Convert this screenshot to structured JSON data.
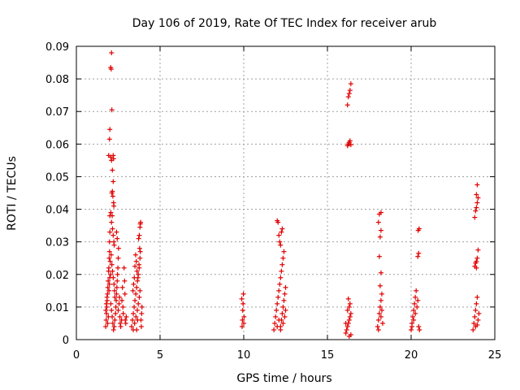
{
  "chart_data": {
    "type": "scatter",
    "title": "Day 106 of 2019, Rate Of TEC Index for receiver arub",
    "xlabel": "GPS time / hours",
    "ylabel": "ROTI / TECUs",
    "xlim": [
      0,
      25
    ],
    "ylim": [
      0,
      0.09
    ],
    "xticks": [
      0,
      5,
      10,
      15,
      20,
      25
    ],
    "xtick_labels": [
      "0",
      "5",
      "10",
      "15",
      "20",
      "25"
    ],
    "yticks": [
      0,
      0.01,
      0.02,
      0.03,
      0.04,
      0.05,
      0.06,
      0.07,
      0.08,
      0.09
    ],
    "ytick_labels": [
      "0",
      "0.01",
      "0.02",
      "0.03",
      "0.04",
      "0.05",
      "0.06",
      "0.07",
      "0.08",
      "0.09"
    ],
    "grid": true,
    "marker": "plus",
    "marker_color": "#e00000",
    "series": [
      {
        "points": [
          [
            1.75,
            0.004
          ],
          [
            1.78,
            0.006
          ],
          [
            1.8,
            0.008
          ],
          [
            1.82,
            0.01
          ],
          [
            1.84,
            0.012
          ],
          [
            1.86,
            0.014
          ],
          [
            1.88,
            0.016
          ],
          [
            1.9,
            0.018
          ],
          [
            1.92,
            0.021
          ],
          [
            1.76,
            0.009
          ],
          [
            1.79,
            0.011
          ],
          [
            1.83,
            0.013
          ],
          [
            1.87,
            0.005
          ],
          [
            1.91,
            0.007
          ],
          [
            1.95,
            0.015
          ],
          [
            1.97,
            0.017
          ],
          [
            1.99,
            0.019
          ],
          [
            1.94,
            0.022
          ],
          [
            1.96,
            0.025
          ],
          [
            1.98,
            0.03
          ],
          [
            2.0,
            0.038
          ],
          [
            2.0,
            0.033
          ],
          [
            1.98,
            0.027
          ],
          [
            2.02,
            0.024
          ],
          [
            2.04,
            0.02
          ],
          [
            1.93,
            0.0565
          ],
          [
            1.98,
            0.0615
          ],
          [
            2.0,
            0.0645
          ],
          [
            2.05,
            0.0835
          ],
          [
            2.08,
            0.083
          ],
          [
            2.1,
            0.088
          ],
          [
            2.12,
            0.0705
          ],
          [
            2.05,
            0.056
          ],
          [
            2.1,
            0.055
          ],
          [
            2.15,
            0.052
          ],
          [
            2.2,
            0.0565
          ],
          [
            2.22,
            0.0555
          ],
          [
            2.12,
            0.045
          ],
          [
            2.15,
            0.0455
          ],
          [
            2.18,
            0.044
          ],
          [
            2.2,
            0.0485
          ],
          [
            2.22,
            0.042
          ],
          [
            2.24,
            0.041
          ],
          [
            2.06,
            0.039
          ],
          [
            2.1,
            0.036
          ],
          [
            2.14,
            0.038
          ],
          [
            2.16,
            0.034
          ],
          [
            2.2,
            0.032
          ],
          [
            2.24,
            0.03
          ],
          [
            2.26,
            0.029
          ],
          [
            2.08,
            0.026
          ],
          [
            2.12,
            0.023
          ],
          [
            2.16,
            0.021
          ],
          [
            2.2,
            0.019
          ],
          [
            2.25,
            0.017
          ],
          [
            2.28,
            0.015
          ],
          [
            2.3,
            0.013
          ],
          [
            2.06,
            0.011
          ],
          [
            2.1,
            0.009
          ],
          [
            2.14,
            0.007
          ],
          [
            2.18,
            0.005
          ],
          [
            2.22,
            0.003
          ],
          [
            2.26,
            0.004
          ],
          [
            2.3,
            0.006
          ],
          [
            2.34,
            0.008
          ],
          [
            2.36,
            0.01
          ],
          [
            2.38,
            0.012
          ],
          [
            2.4,
            0.014
          ],
          [
            2.42,
            0.016
          ],
          [
            2.44,
            0.018
          ],
          [
            2.46,
            0.02
          ],
          [
            2.48,
            0.022
          ],
          [
            2.5,
            0.025
          ],
          [
            2.52,
            0.028
          ],
          [
            2.44,
            0.031
          ],
          [
            2.4,
            0.033
          ],
          [
            2.5,
            0.009
          ],
          [
            2.55,
            0.011
          ],
          [
            2.58,
            0.013
          ],
          [
            2.6,
            0.007
          ],
          [
            2.62,
            0.005
          ],
          [
            2.65,
            0.004
          ],
          [
            2.7,
            0.006
          ],
          [
            2.72,
            0.012
          ],
          [
            2.75,
            0.016
          ],
          [
            2.78,
            0.01
          ],
          [
            2.8,
            0.008
          ],
          [
            2.85,
            0.022
          ],
          [
            2.88,
            0.018
          ],
          [
            2.9,
            0.014
          ],
          [
            2.92,
            0.006
          ],
          [
            2.95,
            0.005
          ],
          [
            2.98,
            0.007
          ]
        ]
      },
      {
        "points": [
          [
            3.3,
            0.004
          ],
          [
            3.35,
            0.006
          ],
          [
            3.4,
            0.008
          ],
          [
            3.45,
            0.01
          ],
          [
            3.5,
            0.012
          ],
          [
            3.55,
            0.014
          ],
          [
            3.6,
            0.016
          ],
          [
            3.65,
            0.018
          ],
          [
            3.7,
            0.02
          ],
          [
            3.75,
            0.022
          ],
          [
            3.8,
            0.025
          ],
          [
            3.82,
            0.027
          ],
          [
            3.78,
            0.028
          ],
          [
            3.74,
            0.023
          ],
          [
            3.68,
            0.019
          ],
          [
            3.62,
            0.021
          ],
          [
            3.58,
            0.024
          ],
          [
            3.54,
            0.026
          ],
          [
            3.5,
            0.0225
          ],
          [
            3.46,
            0.019
          ],
          [
            3.42,
            0.017
          ],
          [
            3.38,
            0.015
          ],
          [
            3.72,
            0.031
          ],
          [
            3.76,
            0.032
          ],
          [
            3.8,
            0.0345
          ],
          [
            3.82,
            0.0355
          ],
          [
            3.84,
            0.036
          ],
          [
            3.4,
            0.003
          ],
          [
            3.48,
            0.005
          ],
          [
            3.56,
            0.007
          ],
          [
            3.64,
            0.009
          ],
          [
            3.7,
            0.011
          ],
          [
            3.76,
            0.013
          ],
          [
            3.8,
            0.015
          ],
          [
            3.86,
            0.006
          ],
          [
            3.88,
            0.004
          ],
          [
            3.9,
            0.008
          ],
          [
            3.92,
            0.01
          ],
          [
            3.6,
            0.003
          ],
          [
            3.66,
            0.006
          ]
        ]
      },
      {
        "points": [
          [
            9.9,
            0.004
          ],
          [
            9.92,
            0.006
          ],
          [
            9.94,
            0.009
          ],
          [
            9.96,
            0.011
          ],
          [
            9.98,
            0.014
          ],
          [
            10.0,
            0.005
          ],
          [
            10.02,
            0.007
          ],
          [
            9.88,
            0.0125
          ]
        ]
      },
      {
        "points": [
          [
            11.8,
            0.003
          ],
          [
            11.85,
            0.005
          ],
          [
            11.9,
            0.007
          ],
          [
            11.95,
            0.009
          ],
          [
            12.0,
            0.011
          ],
          [
            12.05,
            0.013
          ],
          [
            12.1,
            0.015
          ],
          [
            12.15,
            0.017
          ],
          [
            12.2,
            0.019
          ],
          [
            12.25,
            0.021
          ],
          [
            12.3,
            0.023
          ],
          [
            12.35,
            0.025
          ],
          [
            12.4,
            0.027
          ],
          [
            12.0,
            0.0365
          ],
          [
            12.05,
            0.036
          ],
          [
            12.1,
            0.032
          ],
          [
            12.15,
            0.03
          ],
          [
            12.2,
            0.029
          ],
          [
            12.25,
            0.033
          ],
          [
            12.3,
            0.034
          ],
          [
            12.2,
            0.004
          ],
          [
            12.25,
            0.006
          ],
          [
            12.3,
            0.008
          ],
          [
            12.35,
            0.01
          ],
          [
            12.4,
            0.012
          ],
          [
            12.45,
            0.014
          ],
          [
            12.5,
            0.016
          ],
          [
            12.0,
            0.004
          ],
          [
            12.1,
            0.006
          ],
          [
            12.2,
            0.003
          ],
          [
            12.35,
            0.005
          ],
          [
            12.45,
            0.007
          ],
          [
            12.5,
            0.009
          ]
        ]
      },
      {
        "points": [
          [
            16.1,
            0.002
          ],
          [
            16.15,
            0.003
          ],
          [
            16.2,
            0.004
          ],
          [
            16.25,
            0.005
          ],
          [
            16.3,
            0.006
          ],
          [
            16.35,
            0.007
          ],
          [
            16.4,
            0.008
          ],
          [
            16.2,
            0.009
          ],
          [
            16.3,
            0.01
          ],
          [
            16.35,
            0.011
          ],
          [
            16.25,
            0.0125
          ],
          [
            16.3,
            0.001
          ],
          [
            16.4,
            0.0015
          ],
          [
            16.1,
            0.005
          ],
          [
            16.2,
            0.0595
          ],
          [
            16.25,
            0.06
          ],
          [
            16.3,
            0.0605
          ],
          [
            16.35,
            0.061
          ],
          [
            16.4,
            0.0598
          ],
          [
            16.2,
            0.072
          ],
          [
            16.25,
            0.0745
          ],
          [
            16.3,
            0.0755
          ],
          [
            16.35,
            0.0765
          ],
          [
            16.4,
            0.0785
          ]
        ]
      },
      {
        "points": [
          [
            18.0,
            0.004
          ],
          [
            18.05,
            0.006
          ],
          [
            18.1,
            0.008
          ],
          [
            18.15,
            0.01
          ],
          [
            18.2,
            0.012
          ],
          [
            18.25,
            0.014
          ],
          [
            18.3,
            0.005
          ],
          [
            18.05,
            0.003
          ],
          [
            18.2,
            0.007
          ],
          [
            18.25,
            0.009
          ],
          [
            18.15,
            0.0165
          ],
          [
            18.2,
            0.0205
          ],
          [
            18.1,
            0.0255
          ],
          [
            18.15,
            0.0315
          ],
          [
            18.2,
            0.0335
          ],
          [
            18.05,
            0.036
          ],
          [
            18.1,
            0.0385
          ],
          [
            18.2,
            0.039
          ]
        ]
      },
      {
        "points": [
          [
            20.0,
            0.003
          ],
          [
            20.05,
            0.005
          ],
          [
            20.1,
            0.007
          ],
          [
            20.15,
            0.009
          ],
          [
            20.2,
            0.011
          ],
          [
            20.25,
            0.013
          ],
          [
            20.3,
            0.015
          ],
          [
            20.05,
            0.004
          ],
          [
            20.15,
            0.006
          ],
          [
            20.25,
            0.008
          ],
          [
            20.35,
            0.01
          ],
          [
            20.4,
            0.012
          ],
          [
            20.45,
            0.004
          ],
          [
            20.5,
            0.003
          ],
          [
            20.4,
            0.0255
          ],
          [
            20.45,
            0.0265
          ],
          [
            20.42,
            0.0335
          ],
          [
            20.48,
            0.034
          ]
        ]
      },
      {
        "points": [
          [
            23.7,
            0.003
          ],
          [
            23.75,
            0.005
          ],
          [
            23.8,
            0.007
          ],
          [
            23.85,
            0.009
          ],
          [
            23.9,
            0.011
          ],
          [
            23.95,
            0.013
          ],
          [
            24.0,
            0.006
          ],
          [
            24.05,
            0.008
          ],
          [
            23.85,
            0.004
          ],
          [
            23.95,
            0.0045
          ],
          [
            23.8,
            0.0225
          ],
          [
            23.85,
            0.0235
          ],
          [
            23.9,
            0.024
          ],
          [
            23.95,
            0.025
          ],
          [
            24.0,
            0.0275
          ],
          [
            23.9,
            0.022
          ],
          [
            23.8,
            0.0375
          ],
          [
            23.85,
            0.0395
          ],
          [
            23.9,
            0.0405
          ],
          [
            23.95,
            0.042
          ],
          [
            24.0,
            0.0435
          ],
          [
            23.9,
            0.0445
          ],
          [
            23.95,
            0.0475
          ]
        ]
      }
    ]
  }
}
